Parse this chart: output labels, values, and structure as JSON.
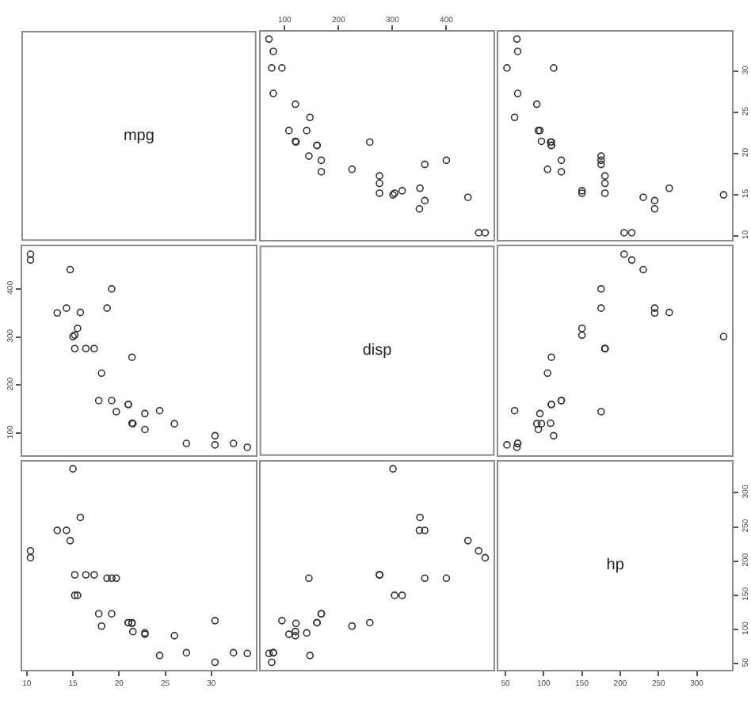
{
  "chart_data": [
    {
      "type": "other",
      "title": "mpg"
    },
    {
      "type": "scatter",
      "x": [
        160,
        160,
        108,
        258,
        360,
        225,
        360,
        147,
        141,
        168,
        168,
        276,
        276,
        276,
        472,
        460,
        440,
        79,
        76,
        71,
        120,
        318,
        304,
        350,
        400,
        79,
        120,
        95,
        351,
        145,
        301,
        121
      ],
      "values": [
        21.0,
        21.0,
        22.8,
        21.4,
        18.7,
        18.1,
        14.3,
        24.4,
        22.8,
        19.2,
        17.8,
        16.4,
        17.3,
        15.2,
        10.4,
        10.4,
        14.7,
        32.4,
        30.4,
        33.9,
        21.5,
        15.5,
        15.2,
        13.3,
        19.2,
        27.3,
        26.0,
        30.4,
        15.8,
        19.7,
        15.0,
        21.4
      ],
      "color": "#333333",
      "marker": "circle",
      "xlim": [
        55,
        488
      ],
      "ylim": [
        9.5,
        34.8
      ],
      "xticks": [
        100,
        200,
        300,
        400
      ],
      "tick_labels": "x"
    },
    {
      "type": "scatter",
      "x": [
        110,
        110,
        93,
        110,
        175,
        105,
        245,
        62,
        95,
        123,
        123,
        180,
        180,
        180,
        205,
        215,
        230,
        66,
        52,
        65,
        97,
        150,
        150,
        245,
        175,
        66,
        91,
        113,
        264,
        175,
        335,
        109
      ],
      "values": [
        21.0,
        21.0,
        22.8,
        21.4,
        18.7,
        18.1,
        14.3,
        24.4,
        22.8,
        19.2,
        17.8,
        16.4,
        17.3,
        15.2,
        10.4,
        10.4,
        14.7,
        32.4,
        30.4,
        33.9,
        21.5,
        15.5,
        15.2,
        13.3,
        19.2,
        27.3,
        26.0,
        30.4,
        15.8,
        19.7,
        15.0,
        21.4
      ],
      "color": "#333333",
      "marker": "circle",
      "xlim": [
        41,
        346
      ],
      "ylim": [
        9.5,
        34.8
      ],
      "yticks": [
        10,
        15,
        20,
        25,
        30
      ],
      "tick_labels": "y"
    },
    {
      "type": "scatter",
      "x": [
        21.0,
        21.0,
        22.8,
        21.4,
        18.7,
        18.1,
        14.3,
        24.4,
        22.8,
        19.2,
        17.8,
        16.4,
        17.3,
        15.2,
        10.4,
        10.4,
        14.7,
        32.4,
        30.4,
        33.9,
        21.5,
        15.5,
        15.2,
        13.3,
        19.2,
        27.3,
        26.0,
        30.4,
        15.8,
        19.7,
        15.0,
        21.4
      ],
      "values": [
        160,
        160,
        108,
        258,
        360,
        225,
        360,
        147,
        141,
        168,
        168,
        276,
        276,
        276,
        472,
        460,
        440,
        79,
        76,
        71,
        120,
        318,
        304,
        350,
        400,
        79,
        120,
        95,
        351,
        145,
        301,
        121
      ],
      "color": "#333333",
      "marker": "circle",
      "xlim": [
        9.5,
        34.8
      ],
      "ylim": [
        55,
        488
      ],
      "yticks": [
        100,
        200,
        300,
        400
      ],
      "tick_labels": "y"
    },
    {
      "type": "other",
      "title": "disp"
    },
    {
      "type": "scatter",
      "x": [
        110,
        110,
        93,
        110,
        175,
        105,
        245,
        62,
        95,
        123,
        123,
        180,
        180,
        180,
        205,
        215,
        230,
        66,
        52,
        65,
        97,
        150,
        150,
        245,
        175,
        66,
        91,
        113,
        264,
        175,
        335,
        109
      ],
      "values": [
        160,
        160,
        108,
        258,
        360,
        225,
        360,
        147,
        141,
        168,
        168,
        276,
        276,
        276,
        472,
        460,
        440,
        79,
        76,
        71,
        120,
        318,
        304,
        350,
        400,
        79,
        120,
        95,
        351,
        145,
        301,
        121
      ],
      "color": "#333333",
      "marker": "circle",
      "xlim": [
        41,
        346
      ],
      "ylim": [
        55,
        488
      ],
      "tick_labels": false
    },
    {
      "type": "scatter",
      "x": [
        21.0,
        21.0,
        22.8,
        21.4,
        18.7,
        18.1,
        14.3,
        24.4,
        22.8,
        19.2,
        17.8,
        16.4,
        17.3,
        15.2,
        10.4,
        10.4,
        14.7,
        32.4,
        30.4,
        33.9,
        21.5,
        15.5,
        15.2,
        13.3,
        19.2,
        27.3,
        26.0,
        30.4,
        15.8,
        19.7,
        15.0,
        21.4
      ],
      "values": [
        110,
        110,
        93,
        110,
        175,
        105,
        245,
        62,
        95,
        123,
        123,
        180,
        180,
        180,
        205,
        215,
        230,
        66,
        52,
        65,
        97,
        150,
        150,
        245,
        175,
        66,
        91,
        113,
        264,
        175,
        335,
        109
      ],
      "color": "#333333",
      "marker": "circle",
      "xlim": [
        9.5,
        34.8
      ],
      "ylim": [
        41,
        346
      ],
      "xticks": [
        10,
        15,
        20,
        25,
        30
      ],
      "tick_labels": "x"
    },
    {
      "type": "scatter",
      "x": [
        160,
        160,
        108,
        258,
        360,
        225,
        360,
        147,
        141,
        168,
        168,
        276,
        276,
        276,
        472,
        460,
        440,
        79,
        76,
        71,
        120,
        318,
        304,
        350,
        400,
        79,
        120,
        95,
        351,
        145,
        301,
        121
      ],
      "values": [
        110,
        110,
        93,
        110,
        175,
        105,
        245,
        62,
        95,
        123,
        123,
        180,
        180,
        180,
        205,
        215,
        230,
        66,
        52,
        65,
        97,
        150,
        150,
        245,
        175,
        66,
        91,
        113,
        264,
        175,
        335,
        109
      ],
      "color": "#333333",
      "marker": "circle",
      "xlim": [
        55,
        488
      ],
      "ylim": [
        41,
        346
      ],
      "tick_labels": false
    },
    {
      "type": "scatter",
      "title": "hp",
      "xlim": [
        41,
        346
      ],
      "ylim": [
        41,
        346
      ],
      "xticks": [
        50,
        100,
        150,
        200,
        250,
        300
      ],
      "yticks": [
        50,
        100,
        150,
        200,
        250,
        300
      ]
    }
  ]
}
